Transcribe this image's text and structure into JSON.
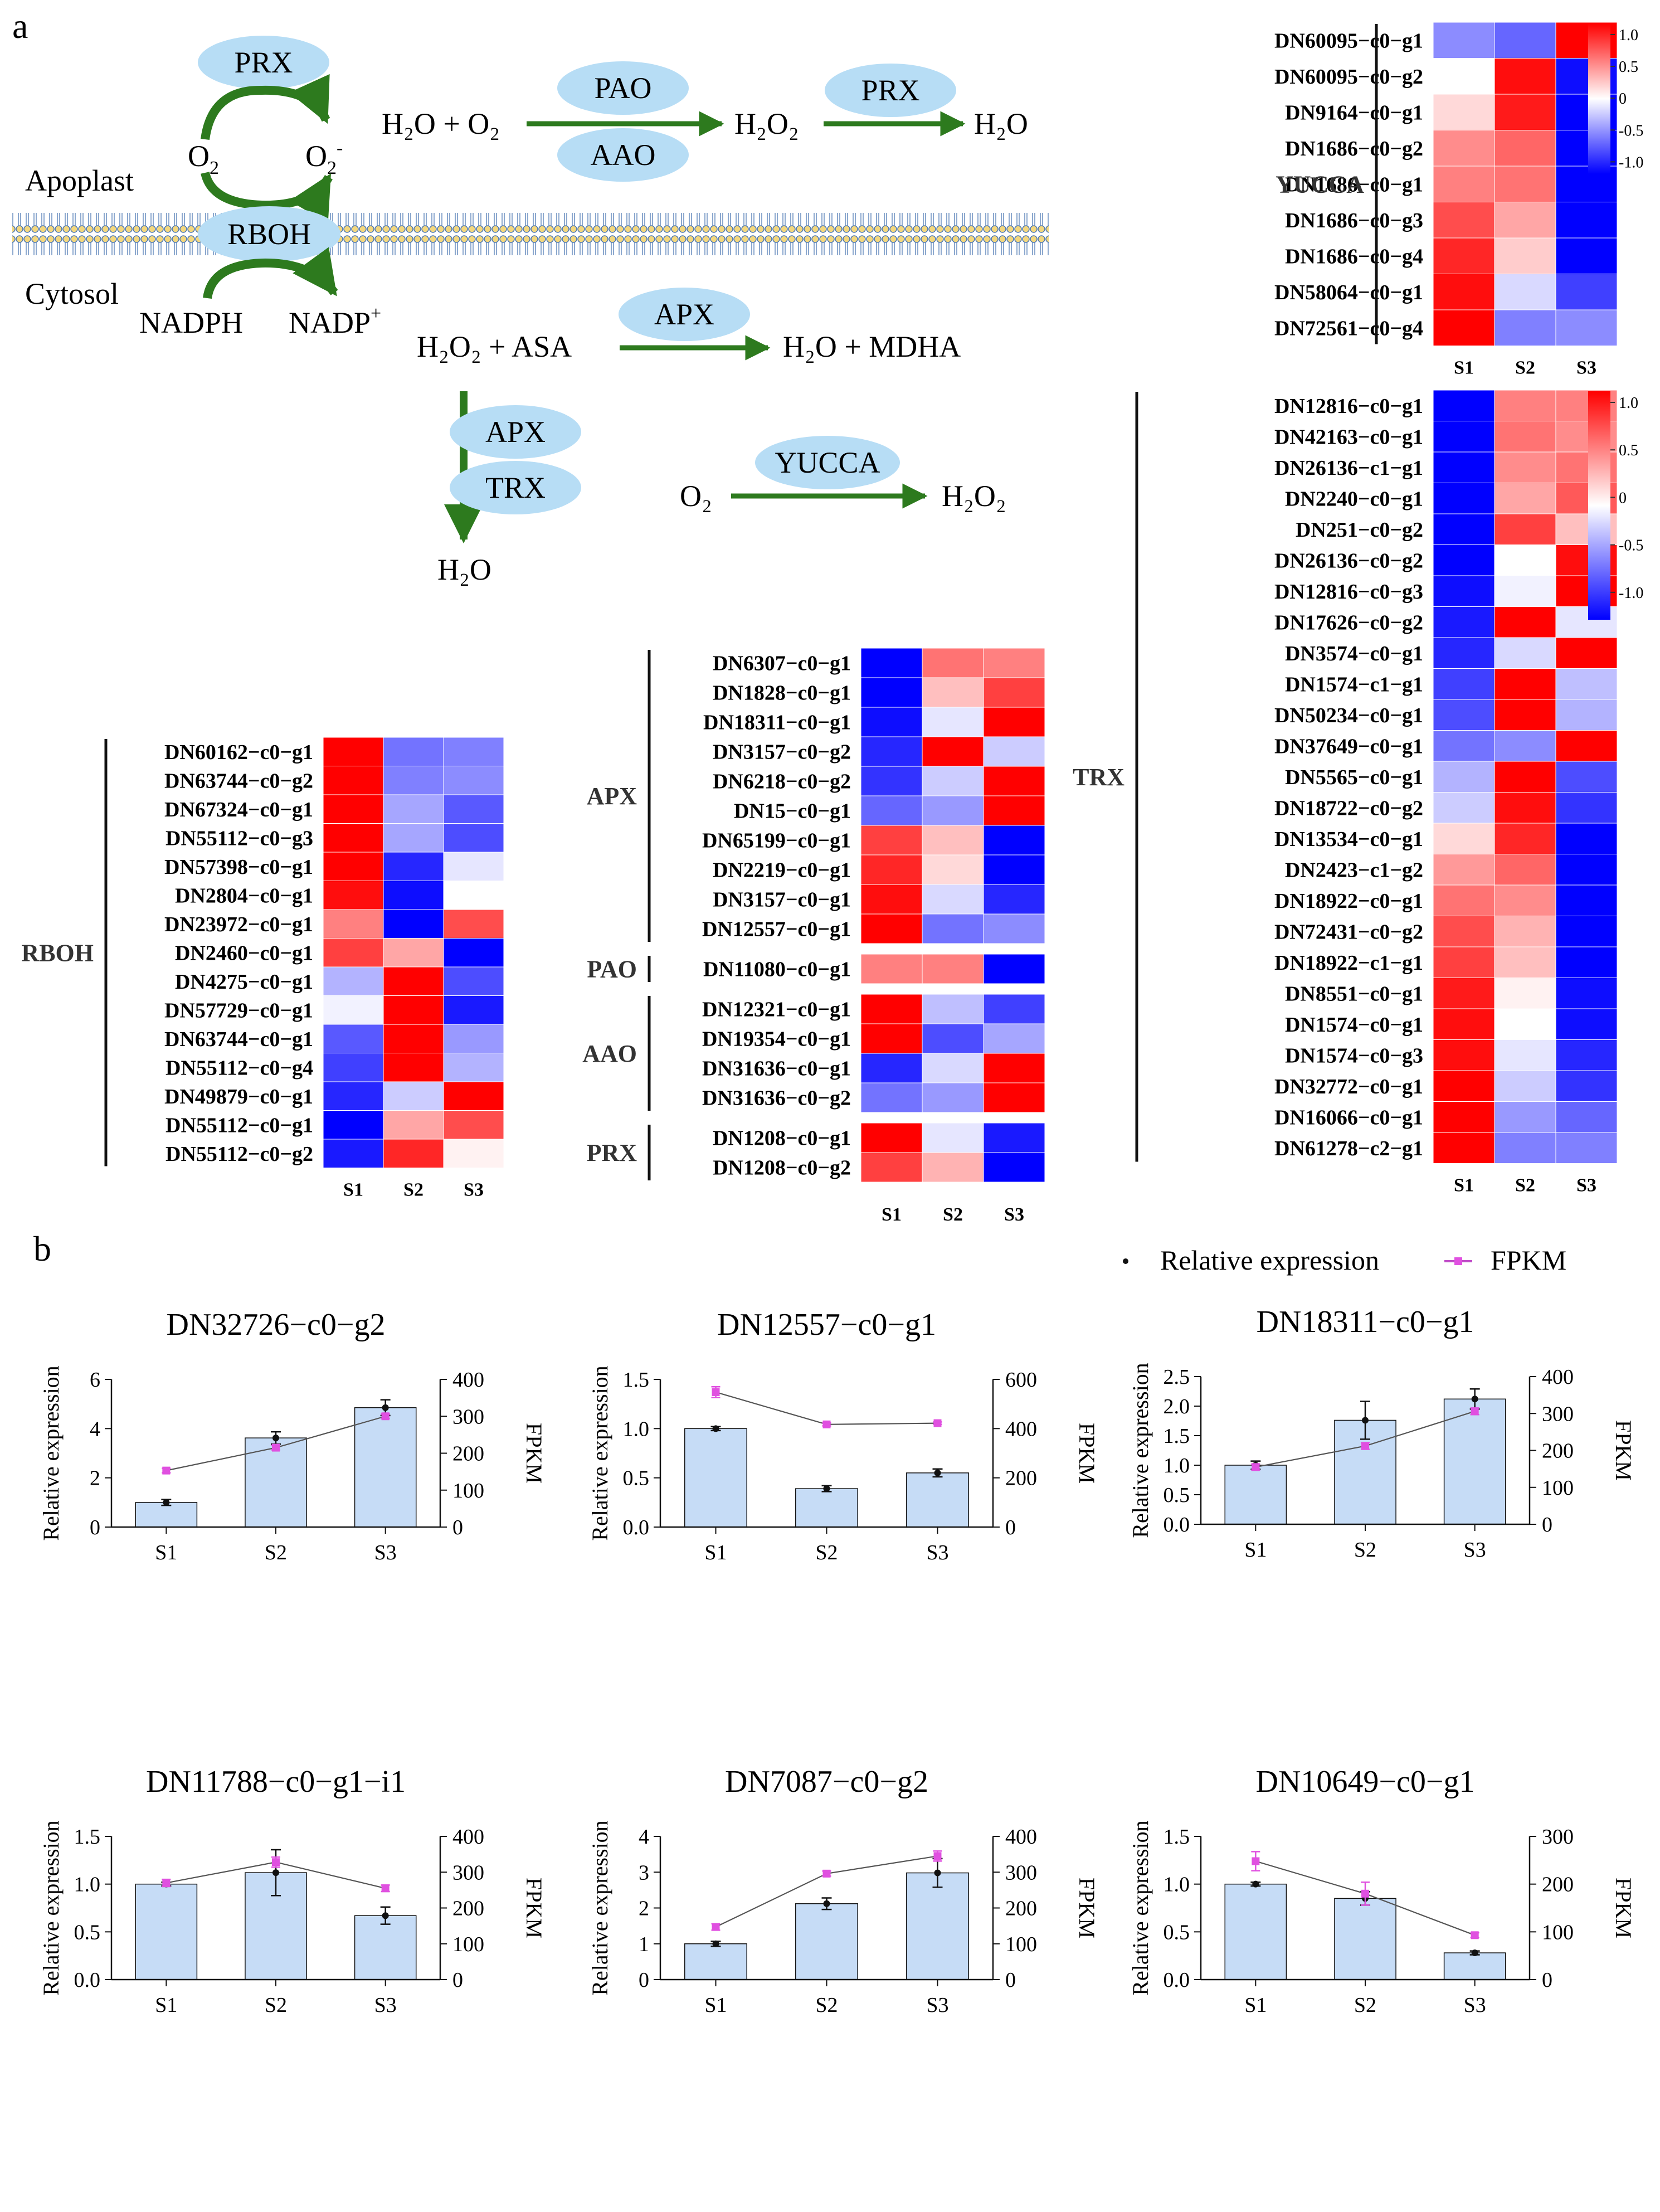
{
  "panel_labels": {
    "a": "a",
    "b": "b"
  },
  "pathway": {
    "compartments": {
      "apoplast": "Apoplast",
      "cytosol": "Cytosol"
    },
    "enzymes": {
      "prx1": "PRX",
      "rboh": "RBOH",
      "pao": "PAO",
      "aao": "AAO",
      "prx2": "PRX",
      "apx1": "APX",
      "apx2": "APX",
      "trx": "TRX",
      "yucca": "YUCCA"
    },
    "o2": "O",
    "o2_sub": "2",
    "o2m": "O",
    "o2m_sub": "2",
    "o2m_sup": "-",
    "nadph": "NADPH",
    "nadp": "NADP",
    "nadp_sup": "+",
    "r1": {
      "left": "H₂O + O₂",
      "mid": "H₂O₂",
      "right": "H₂O"
    },
    "r2": {
      "left": "H₂O₂ + ASA",
      "right": "H₂O + MDHA"
    },
    "r3": {
      "bottom": "H₂O"
    },
    "r4": {
      "left": "O₂",
      "right": "H₂O₂"
    }
  },
  "colorbar": {
    "ticks": [
      "1.0",
      "0.5",
      "0",
      "-0.5",
      "-1.0"
    ],
    "colors": {
      "high": "#ff0000",
      "mid": "#ffffff",
      "low": "#0000ff"
    }
  },
  "samples": [
    "S1",
    "S2",
    "S3"
  ],
  "heatmaps": {
    "yucca": {
      "groups": [
        {
          "name": "YUCCA",
          "rows": [
            {
              "gene": "DN60095−c0−g1",
              "v": [
                -0.45,
                -0.6,
                1.0
              ]
            },
            {
              "gene": "DN60095−c0−g2",
              "v": [
                0.0,
                0.95,
                -0.95
              ]
            },
            {
              "gene": "DN9164−c0−g1",
              "v": [
                0.15,
                0.9,
                -1.0
              ]
            },
            {
              "gene": "DN1686−c0−g2",
              "v": [
                0.45,
                0.6,
                -1.0
              ]
            },
            {
              "gene": "DN1686−c0−g1",
              "v": [
                0.5,
                0.55,
                -1.0
              ]
            },
            {
              "gene": "DN1686−c0−g3",
              "v": [
                0.7,
                0.35,
                -1.0
              ]
            },
            {
              "gene": "DN1686−c0−g4",
              "v": [
                0.85,
                0.2,
                -1.0
              ]
            },
            {
              "gene": "DN58064−c0−g1",
              "v": [
                0.95,
                -0.15,
                -0.75
              ]
            },
            {
              "gene": "DN72561−c0−g4",
              "v": [
                1.0,
                -0.5,
                -0.45
              ]
            }
          ]
        }
      ]
    },
    "rboh": {
      "groups": [
        {
          "name": "RBOH",
          "rows": [
            {
              "gene": "DN60162−c0−g1",
              "v": [
                1.0,
                -0.55,
                -0.5
              ]
            },
            {
              "gene": "DN63744−c0−g2",
              "v": [
                1.0,
                -0.5,
                -0.45
              ]
            },
            {
              "gene": "DN67324−c0−g1",
              "v": [
                1.0,
                -0.35,
                -0.65
              ]
            },
            {
              "gene": "DN55112−c0−g3",
              "v": [
                1.0,
                -0.35,
                -0.7
              ]
            },
            {
              "gene": "DN57398−c0−g1",
              "v": [
                1.0,
                -0.85,
                -0.1
              ]
            },
            {
              "gene": "DN2804−c0−g1",
              "v": [
                0.95,
                -0.95,
                0.0
              ]
            },
            {
              "gene": "DN23972−c0−g1",
              "v": [
                0.5,
                -1.0,
                0.7
              ]
            },
            {
              "gene": "DN2460−c0−g1",
              "v": [
                0.75,
                0.35,
                -1.0
              ]
            },
            {
              "gene": "DN4275−c0−g1",
              "v": [
                -0.3,
                1.0,
                -0.7
              ]
            },
            {
              "gene": "DN57729−c0−g1",
              "v": [
                -0.05,
                1.0,
                -0.9
              ]
            },
            {
              "gene": "DN63744−c0−g1",
              "v": [
                -0.65,
                1.0,
                -0.4
              ]
            },
            {
              "gene": "DN55112−c0−g4",
              "v": [
                -0.75,
                1.0,
                -0.3
              ]
            },
            {
              "gene": "DN49879−c0−g1",
              "v": [
                -0.85,
                -0.2,
                1.0
              ]
            },
            {
              "gene": "DN55112−c0−g1",
              "v": [
                -1.0,
                0.35,
                0.7
              ]
            },
            {
              "gene": "DN55112−c0−g2",
              "v": [
                -0.9,
                0.85,
                0.05
              ]
            }
          ]
        }
      ]
    },
    "mid": {
      "groups": [
        {
          "name": "APX",
          "rows": [
            {
              "gene": "DN6307−c0−g1",
              "v": [
                -1.0,
                0.55,
                0.5
              ]
            },
            {
              "gene": "DN1828−c0−g1",
              "v": [
                -1.0,
                0.25,
                0.75
              ]
            },
            {
              "gene": "DN18311−c0−g1",
              "v": [
                -0.95,
                -0.1,
                1.0
              ]
            },
            {
              "gene": "DN3157−c0−g2",
              "v": [
                -0.85,
                1.0,
                -0.2
              ]
            },
            {
              "gene": "DN6218−c0−g2",
              "v": [
                -0.8,
                -0.2,
                1.0
              ]
            },
            {
              "gene": "DN15−c0−g1",
              "v": [
                -0.6,
                -0.4,
                1.0
              ]
            },
            {
              "gene": "DN65199−c0−g1",
              "v": [
                0.75,
                0.25,
                -1.0
              ]
            },
            {
              "gene": "DN2219−c0−g1",
              "v": [
                0.85,
                0.15,
                -1.0
              ]
            },
            {
              "gene": "DN3157−c0−g1",
              "v": [
                0.95,
                -0.15,
                -0.85
              ]
            },
            {
              "gene": "DN12557−c0−g1",
              "v": [
                1.0,
                -0.55,
                -0.45
              ]
            }
          ]
        },
        {
          "name": "PAO",
          "rows": [
            {
              "gene": "DN11080−c0−g1",
              "v": [
                0.5,
                0.5,
                -1.0
              ]
            }
          ]
        },
        {
          "name": "AAO",
          "rows": [
            {
              "gene": "DN12321−c0−g1",
              "v": [
                1.0,
                -0.25,
                -0.75
              ]
            },
            {
              "gene": "DN19354−c0−g1",
              "v": [
                1.0,
                -0.7,
                -0.35
              ]
            },
            {
              "gene": "DN31636−c0−g1",
              "v": [
                -0.85,
                -0.15,
                1.0
              ]
            },
            {
              "gene": "DN31636−c0−g2",
              "v": [
                -0.55,
                -0.4,
                1.0
              ]
            }
          ]
        },
        {
          "name": "PRX",
          "rows": [
            {
              "gene": "DN1208−c0−g1",
              "v": [
                1.0,
                -0.1,
                -0.9
              ]
            },
            {
              "gene": "DN1208−c0−g2",
              "v": [
                0.75,
                0.3,
                -1.0
              ]
            }
          ]
        }
      ]
    },
    "trx": {
      "groups": [
        {
          "name": "TRX",
          "rows": [
            {
              "gene": "DN12816−c0−g1",
              "v": [
                -1.0,
                0.5,
                0.5
              ]
            },
            {
              "gene": "DN42163−c0−g1",
              "v": [
                -1.0,
                0.55,
                0.45
              ]
            },
            {
              "gene": "DN26136−c1−g1",
              "v": [
                -1.0,
                0.45,
                0.55
              ]
            },
            {
              "gene": "DN2240−c0−g1",
              "v": [
                -1.0,
                0.35,
                0.65
              ]
            },
            {
              "gene": "DN251−c0−g2",
              "v": [
                -1.0,
                0.75,
                0.25
              ]
            },
            {
              "gene": "DN26136−c0−g2",
              "v": [
                -1.0,
                0.0,
                0.95
              ]
            },
            {
              "gene": "DN12816−c0−g3",
              "v": [
                -0.95,
                -0.05,
                1.0
              ]
            },
            {
              "gene": "DN17626−c0−g2",
              "v": [
                -0.9,
                1.0,
                -0.1
              ]
            },
            {
              "gene": "DN3574−c0−g1",
              "v": [
                -0.85,
                -0.15,
                1.0
              ]
            },
            {
              "gene": "DN1574−c1−g1",
              "v": [
                -0.75,
                1.0,
                -0.25
              ]
            },
            {
              "gene": "DN50234−c0−g1",
              "v": [
                -0.7,
                1.0,
                -0.3
              ]
            },
            {
              "gene": "DN37649−c0−g1",
              "v": [
                -0.55,
                -0.45,
                1.0
              ]
            },
            {
              "gene": "DN5565−c0−g1",
              "v": [
                -0.3,
                1.0,
                -0.7
              ]
            },
            {
              "gene": "DN18722−c0−g2",
              "v": [
                -0.2,
                0.95,
                -0.8
              ]
            },
            {
              "gene": "DN13534−c0−g1",
              "v": [
                0.15,
                0.85,
                -1.0
              ]
            },
            {
              "gene": "DN2423−c1−g2",
              "v": [
                0.4,
                0.6,
                -1.0
              ]
            },
            {
              "gene": "DN18922−c0−g1",
              "v": [
                0.55,
                0.45,
                -1.0
              ]
            },
            {
              "gene": "DN72431−c0−g2",
              "v": [
                0.7,
                0.3,
                -1.0
              ]
            },
            {
              "gene": "DN18922−c1−g1",
              "v": [
                0.75,
                0.25,
                -1.0
              ]
            },
            {
              "gene": "DN8551−c0−g1",
              "v": [
                0.9,
                0.05,
                -0.95
              ]
            },
            {
              "gene": "DN1574−c0−g1",
              "v": [
                0.95,
                0.0,
                -0.95
              ]
            },
            {
              "gene": "DN1574−c0−g3",
              "v": [
                0.95,
                -0.1,
                -0.85
              ]
            },
            {
              "gene": "DN32772−c0−g1",
              "v": [
                1.0,
                -0.2,
                -0.8
              ]
            },
            {
              "gene": "DN16066−c0−g1",
              "v": [
                1.0,
                -0.4,
                -0.6
              ]
            },
            {
              "gene": "DN61278−c2−g1",
              "v": [
                1.0,
                -0.5,
                -0.5
              ]
            }
          ]
        }
      ]
    }
  },
  "legend": {
    "relative": "Relative expression",
    "fpkm": "FPKM"
  },
  "chart_data": [
    {
      "type": "bar",
      "title": "DN32726−c0−g2",
      "categories": [
        "S1",
        "S2",
        "S3"
      ],
      "ylabel": "Relative expression",
      "y2label": "FPKM",
      "ylim": [
        0,
        6
      ],
      "yticks": [
        "0",
        "2",
        "4",
        "6"
      ],
      "y2lim": [
        0,
        400
      ],
      "y2ticks": [
        "0",
        "100",
        "200",
        "300",
        "400"
      ],
      "series": [
        {
          "name": "Relative expression",
          "values": [
            1.0,
            3.62,
            4.85
          ],
          "errors": [
            0.12,
            0.25,
            0.32
          ]
        },
        {
          "name": "FPKM",
          "values": [
            153,
            215,
            300
          ],
          "errors": [
            6,
            6,
            6
          ]
        }
      ]
    },
    {
      "type": "bar",
      "title": "DN12557−c0−g1",
      "categories": [
        "S1",
        "S2",
        "S3"
      ],
      "ylabel": "Relative expression",
      "y2label": "FPKM",
      "ylim": [
        0,
        1.5
      ],
      "yticks": [
        "0.0",
        "0.5",
        "1.0",
        "1.5"
      ],
      "y2lim": [
        0,
        600
      ],
      "y2ticks": [
        "0",
        "200",
        "400",
        "600"
      ],
      "series": [
        {
          "name": "Relative expression",
          "values": [
            1.0,
            0.39,
            0.55
          ],
          "errors": [
            0.02,
            0.03,
            0.04
          ]
        },
        {
          "name": "FPKM",
          "values": [
            548,
            417,
            422
          ],
          "errors": [
            22,
            6,
            5
          ]
        }
      ]
    },
    {
      "type": "bar",
      "title": "DN18311−c0−g1",
      "categories": [
        "S1",
        "S2",
        "S3"
      ],
      "ylabel": "Relative expression",
      "y2label": "FPKM",
      "ylim": [
        0,
        2.5
      ],
      "yticks": [
        "0.0",
        "0.5",
        "1.0",
        "1.5",
        "2.0",
        "2.5"
      ],
      "y2lim": [
        0,
        400
      ],
      "y2ticks": [
        "0",
        "100",
        "200",
        "300",
        "400"
      ],
      "series": [
        {
          "name": "Relative expression",
          "values": [
            1.0,
            1.76,
            2.12
          ],
          "errors": [
            0.07,
            0.32,
            0.17
          ]
        },
        {
          "name": "FPKM",
          "values": [
            155,
            212,
            306
          ],
          "errors": [
            8,
            9,
            9
          ]
        }
      ]
    },
    {
      "type": "bar",
      "title": "DN11788−c0−g1−i1",
      "categories": [
        "S1",
        "S2",
        "S3"
      ],
      "ylabel": "Relative expression",
      "y2label": "FPKM",
      "ylim": [
        0,
        1.5
      ],
      "yticks": [
        "0.0",
        "0.5",
        "1.0",
        "1.5"
      ],
      "y2lim": [
        0,
        400
      ],
      "y2ticks": [
        "0",
        "100",
        "200",
        "300",
        "400"
      ],
      "series": [
        {
          "name": "Relative expression",
          "values": [
            1.0,
            1.12,
            0.67
          ],
          "errors": [
            0.02,
            0.24,
            0.09
          ]
        },
        {
          "name": "FPKM",
          "values": [
            270,
            328,
            255
          ],
          "errors": [
            10,
            14,
            9
          ]
        }
      ]
    },
    {
      "type": "bar",
      "title": "DN7087−c0−g2",
      "categories": [
        "S1",
        "S2",
        "S3"
      ],
      "ylabel": "Relative expression",
      "y2label": "FPKM",
      "ylim": [
        0,
        4
      ],
      "yticks": [
        "0",
        "1",
        "2",
        "3",
        "4"
      ],
      "y2lim": [
        0,
        400
      ],
      "y2ticks": [
        "0",
        "100",
        "200",
        "300",
        "400"
      ],
      "series": [
        {
          "name": "Relative expression",
          "values": [
            1.0,
            2.12,
            2.98
          ],
          "errors": [
            0.07,
            0.16,
            0.4
          ]
        },
        {
          "name": "FPKM",
          "values": [
            147,
            296,
            345
          ],
          "errors": [
            9,
            7,
            14
          ]
        }
      ]
    },
    {
      "type": "bar",
      "title": "DN10649−c0−g1",
      "categories": [
        "S1",
        "S2",
        "S3"
      ],
      "ylabel": "Relative expression",
      "y2label": "FPKM",
      "ylim": [
        0,
        1.5
      ],
      "yticks": [
        "0.0",
        "0.5",
        "1.0",
        "1.5"
      ],
      "y2lim": [
        0,
        300
      ],
      "y2ticks": [
        "0",
        "100",
        "200",
        "300"
      ],
      "series": [
        {
          "name": "Relative expression",
          "values": [
            1.0,
            0.85,
            0.28
          ],
          "errors": [
            0.02,
            0.07,
            0.02
          ]
        },
        {
          "name": "FPKM",
          "values": [
            248,
            180,
            93
          ],
          "errors": [
            20,
            24,
            5
          ]
        }
      ]
    }
  ]
}
